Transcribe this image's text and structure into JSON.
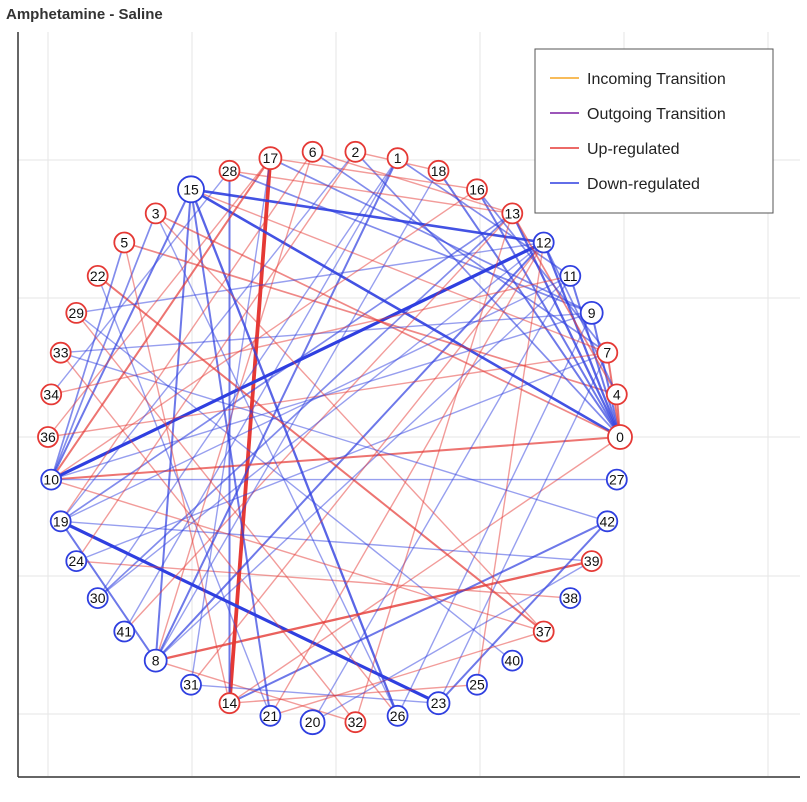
{
  "title": "Amphetamine - Saline",
  "colors": {
    "incoming": "#f5a623",
    "outgoing": "#7b1fa2",
    "up": "#e53935",
    "down": "#2f3fe0",
    "grid": "#e6e6e6"
  },
  "legend": [
    {
      "label": "Incoming Transition",
      "type": "incoming"
    },
    {
      "label": "Outgoing Transition",
      "type": "outgoing"
    },
    {
      "label": "Up-regulated",
      "type": "up"
    },
    {
      "label": "Down-regulated",
      "type": "down"
    }
  ],
  "nodes": [
    {
      "id": "0",
      "reg": "up"
    },
    {
      "id": "4",
      "reg": "up"
    },
    {
      "id": "7",
      "reg": "up"
    },
    {
      "id": "9",
      "reg": "down"
    },
    {
      "id": "11",
      "reg": "down"
    },
    {
      "id": "12",
      "reg": "down"
    },
    {
      "id": "13",
      "reg": "up"
    },
    {
      "id": "16",
      "reg": "up"
    },
    {
      "id": "18",
      "reg": "up"
    },
    {
      "id": "1",
      "reg": "up"
    },
    {
      "id": "2",
      "reg": "up"
    },
    {
      "id": "6",
      "reg": "up"
    },
    {
      "id": "17",
      "reg": "up"
    },
    {
      "id": "28",
      "reg": "up"
    },
    {
      "id": "15",
      "reg": "down"
    },
    {
      "id": "3",
      "reg": "up"
    },
    {
      "id": "5",
      "reg": "up"
    },
    {
      "id": "22",
      "reg": "up"
    },
    {
      "id": "29",
      "reg": "up"
    },
    {
      "id": "33",
      "reg": "up"
    },
    {
      "id": "34",
      "reg": "up"
    },
    {
      "id": "36",
      "reg": "up"
    },
    {
      "id": "10",
      "reg": "down"
    },
    {
      "id": "19",
      "reg": "down"
    },
    {
      "id": "24",
      "reg": "down"
    },
    {
      "id": "30",
      "reg": "down"
    },
    {
      "id": "41",
      "reg": "down"
    },
    {
      "id": "8",
      "reg": "down"
    },
    {
      "id": "31",
      "reg": "down"
    },
    {
      "id": "14",
      "reg": "up"
    },
    {
      "id": "21",
      "reg": "down"
    },
    {
      "id": "20",
      "reg": "down"
    },
    {
      "id": "32",
      "reg": "up"
    },
    {
      "id": "26",
      "reg": "down"
    },
    {
      "id": "23",
      "reg": "down"
    },
    {
      "id": "25",
      "reg": "down"
    },
    {
      "id": "40",
      "reg": "down"
    },
    {
      "id": "37",
      "reg": "up"
    },
    {
      "id": "38",
      "reg": "down"
    },
    {
      "id": "39",
      "reg": "up"
    },
    {
      "id": "42",
      "reg": "down"
    },
    {
      "id": "27",
      "reg": "down"
    }
  ],
  "edges": [
    {
      "s": "17",
      "t": "14",
      "reg": "up",
      "weight": 5
    },
    {
      "s": "10",
      "t": "12",
      "reg": "down",
      "weight": 4
    },
    {
      "s": "19",
      "t": "23",
      "reg": "down",
      "weight": 4
    },
    {
      "s": "15",
      "t": "0",
      "reg": "down",
      "weight": 3
    },
    {
      "s": "15",
      "t": "12",
      "reg": "down",
      "weight": 3
    },
    {
      "s": "15",
      "t": "26",
      "reg": "down",
      "weight": 2.5
    },
    {
      "s": "15",
      "t": "21",
      "reg": "down",
      "weight": 2
    },
    {
      "s": "15",
      "t": "8",
      "reg": "down",
      "weight": 2
    },
    {
      "s": "15",
      "t": "10",
      "reg": "down",
      "weight": 2
    },
    {
      "s": "28",
      "t": "14",
      "reg": "down",
      "weight": 2
    },
    {
      "s": "17",
      "t": "10",
      "reg": "up",
      "weight": 2
    },
    {
      "s": "8",
      "t": "39",
      "reg": "up",
      "weight": 2.5
    },
    {
      "s": "8",
      "t": "12",
      "reg": "down",
      "weight": 2
    },
    {
      "s": "8",
      "t": "1",
      "reg": "down",
      "weight": 2
    },
    {
      "s": "14",
      "t": "42",
      "reg": "down",
      "weight": 2
    },
    {
      "s": "23",
      "t": "42",
      "reg": "down",
      "weight": 2
    },
    {
      "s": "10",
      "t": "0",
      "reg": "up",
      "weight": 2
    },
    {
      "s": "19",
      "t": "13",
      "reg": "down",
      "weight": 1.5
    },
    {
      "s": "19",
      "t": "8",
      "reg": "down",
      "weight": 2
    },
    {
      "s": "22",
      "t": "37",
      "reg": "up",
      "weight": 2
    },
    {
      "s": "3",
      "t": "0",
      "reg": "up",
      "weight": 1.5
    },
    {
      "s": "5",
      "t": "4",
      "reg": "up",
      "weight": 1.5
    },
    {
      "s": "30",
      "t": "13",
      "reg": "down",
      "weight": 1.5
    },
    {
      "s": "10",
      "t": "5",
      "reg": "down",
      "weight": 1.5
    },
    {
      "s": "10",
      "t": "3",
      "reg": "down",
      "weight": 1.5
    },
    {
      "s": "28",
      "t": "9",
      "reg": "down",
      "weight": 1.5
    },
    {
      "s": "17",
      "t": "9",
      "reg": "down",
      "weight": 1.5
    },
    {
      "s": "6",
      "t": "7",
      "reg": "down",
      "weight": 1.5
    },
    {
      "s": "2",
      "t": "0",
      "reg": "down",
      "weight": 1.5
    },
    {
      "s": "1",
      "t": "11",
      "reg": "down",
      "weight": 1.5
    },
    {
      "s": "18",
      "t": "0",
      "reg": "down",
      "weight": 2
    },
    {
      "s": "16",
      "t": "0",
      "reg": "down",
      "weight": 2
    },
    {
      "s": "13",
      "t": "0",
      "reg": "down",
      "weight": 2.5
    },
    {
      "s": "12",
      "t": "0",
      "reg": "down",
      "weight": 2.5
    },
    {
      "s": "11",
      "t": "0",
      "reg": "down",
      "weight": 2
    },
    {
      "s": "9",
      "t": "0",
      "reg": "down",
      "weight": 2
    },
    {
      "s": "7",
      "t": "0",
      "reg": "up",
      "weight": 2
    },
    {
      "s": "4",
      "t": "0",
      "reg": "up",
      "weight": 2
    },
    {
      "s": "13",
      "t": "4",
      "reg": "up",
      "weight": 1.5
    },
    {
      "s": "12",
      "t": "4",
      "reg": "down",
      "weight": 1.5
    },
    {
      "s": "16",
      "t": "7",
      "reg": "down",
      "weight": 1.5
    },
    {
      "s": "6",
      "t": "13",
      "reg": "up",
      "weight": 1
    },
    {
      "s": "2",
      "t": "18",
      "reg": "up",
      "weight": 1
    },
    {
      "s": "28",
      "t": "13",
      "reg": "up",
      "weight": 1
    },
    {
      "s": "17",
      "t": "16",
      "reg": "up",
      "weight": 1
    },
    {
      "s": "29",
      "t": "12",
      "reg": "down",
      "weight": 1
    },
    {
      "s": "33",
      "t": "9",
      "reg": "down",
      "weight": 1
    },
    {
      "s": "34",
      "t": "11",
      "reg": "up",
      "weight": 1
    },
    {
      "s": "36",
      "t": "7",
      "reg": "up",
      "weight": 1
    },
    {
      "s": "10",
      "t": "9",
      "reg": "down",
      "weight": 1
    },
    {
      "s": "19",
      "t": "11",
      "reg": "down",
      "weight": 1
    },
    {
      "s": "24",
      "t": "7",
      "reg": "down",
      "weight": 1
    },
    {
      "s": "41",
      "t": "13",
      "reg": "up",
      "weight": 1
    },
    {
      "s": "8",
      "t": "11",
      "reg": "down",
      "weight": 1
    },
    {
      "s": "31",
      "t": "12",
      "reg": "up",
      "weight": 1
    },
    {
      "s": "14",
      "t": "0",
      "reg": "up",
      "weight": 1
    },
    {
      "s": "21",
      "t": "12",
      "reg": "up",
      "weight": 1
    },
    {
      "s": "20",
      "t": "11",
      "reg": "down",
      "weight": 1
    },
    {
      "s": "32",
      "t": "13",
      "reg": "up",
      "weight": 1
    },
    {
      "s": "26",
      "t": "9",
      "reg": "down",
      "weight": 1
    },
    {
      "s": "23",
      "t": "7",
      "reg": "down",
      "weight": 1
    },
    {
      "s": "25",
      "t": "12",
      "reg": "up",
      "weight": 1
    },
    {
      "s": "37",
      "t": "3",
      "reg": "up",
      "weight": 1
    },
    {
      "s": "39",
      "t": "19",
      "reg": "down",
      "weight": 1
    },
    {
      "s": "27",
      "t": "10",
      "reg": "down",
      "weight": 1
    },
    {
      "s": "38",
      "t": "24",
      "reg": "up",
      "weight": 1
    },
    {
      "s": "40",
      "t": "29",
      "reg": "down",
      "weight": 1
    },
    {
      "s": "42",
      "t": "33",
      "reg": "down",
      "weight": 1
    },
    {
      "s": "5",
      "t": "14",
      "reg": "up",
      "weight": 1
    },
    {
      "s": "22",
      "t": "21",
      "reg": "down",
      "weight": 1
    },
    {
      "s": "3",
      "t": "26",
      "reg": "down",
      "weight": 1
    },
    {
      "s": "10",
      "t": "37",
      "reg": "up",
      "weight": 1
    },
    {
      "s": "36",
      "t": "17",
      "reg": "up",
      "weight": 1
    },
    {
      "s": "34",
      "t": "28",
      "reg": "down",
      "weight": 1
    },
    {
      "s": "8",
      "t": "32",
      "reg": "up",
      "weight": 1
    },
    {
      "s": "31",
      "t": "23",
      "reg": "down",
      "weight": 1
    },
    {
      "s": "14",
      "t": "25",
      "reg": "up",
      "weight": 1
    },
    {
      "s": "21",
      "t": "37",
      "reg": "up",
      "weight": 1
    },
    {
      "s": "20",
      "t": "39",
      "reg": "down",
      "weight": 1
    },
    {
      "s": "30",
      "t": "12",
      "reg": "down",
      "weight": 1
    },
    {
      "s": "24",
      "t": "2",
      "reg": "up",
      "weight": 1
    },
    {
      "s": "41",
      "t": "1",
      "reg": "down",
      "weight": 1
    },
    {
      "s": "19",
      "t": "6",
      "reg": "up",
      "weight": 1
    },
    {
      "s": "29",
      "t": "26",
      "reg": "up",
      "weight": 1
    },
    {
      "s": "33",
      "t": "32",
      "reg": "up",
      "weight": 1
    },
    {
      "s": "15",
      "t": "7",
      "reg": "up",
      "weight": 1
    },
    {
      "s": "18",
      "t": "8",
      "reg": "down",
      "weight": 1
    },
    {
      "s": "1",
      "t": "30",
      "reg": "down",
      "weight": 1
    },
    {
      "s": "16",
      "t": "10",
      "reg": "up",
      "weight": 1
    },
    {
      "s": "2",
      "t": "19",
      "reg": "down",
      "weight": 1
    },
    {
      "s": "6",
      "t": "8",
      "reg": "up",
      "weight": 1
    },
    {
      "s": "17",
      "t": "31",
      "reg": "down",
      "weight": 1
    }
  ]
}
